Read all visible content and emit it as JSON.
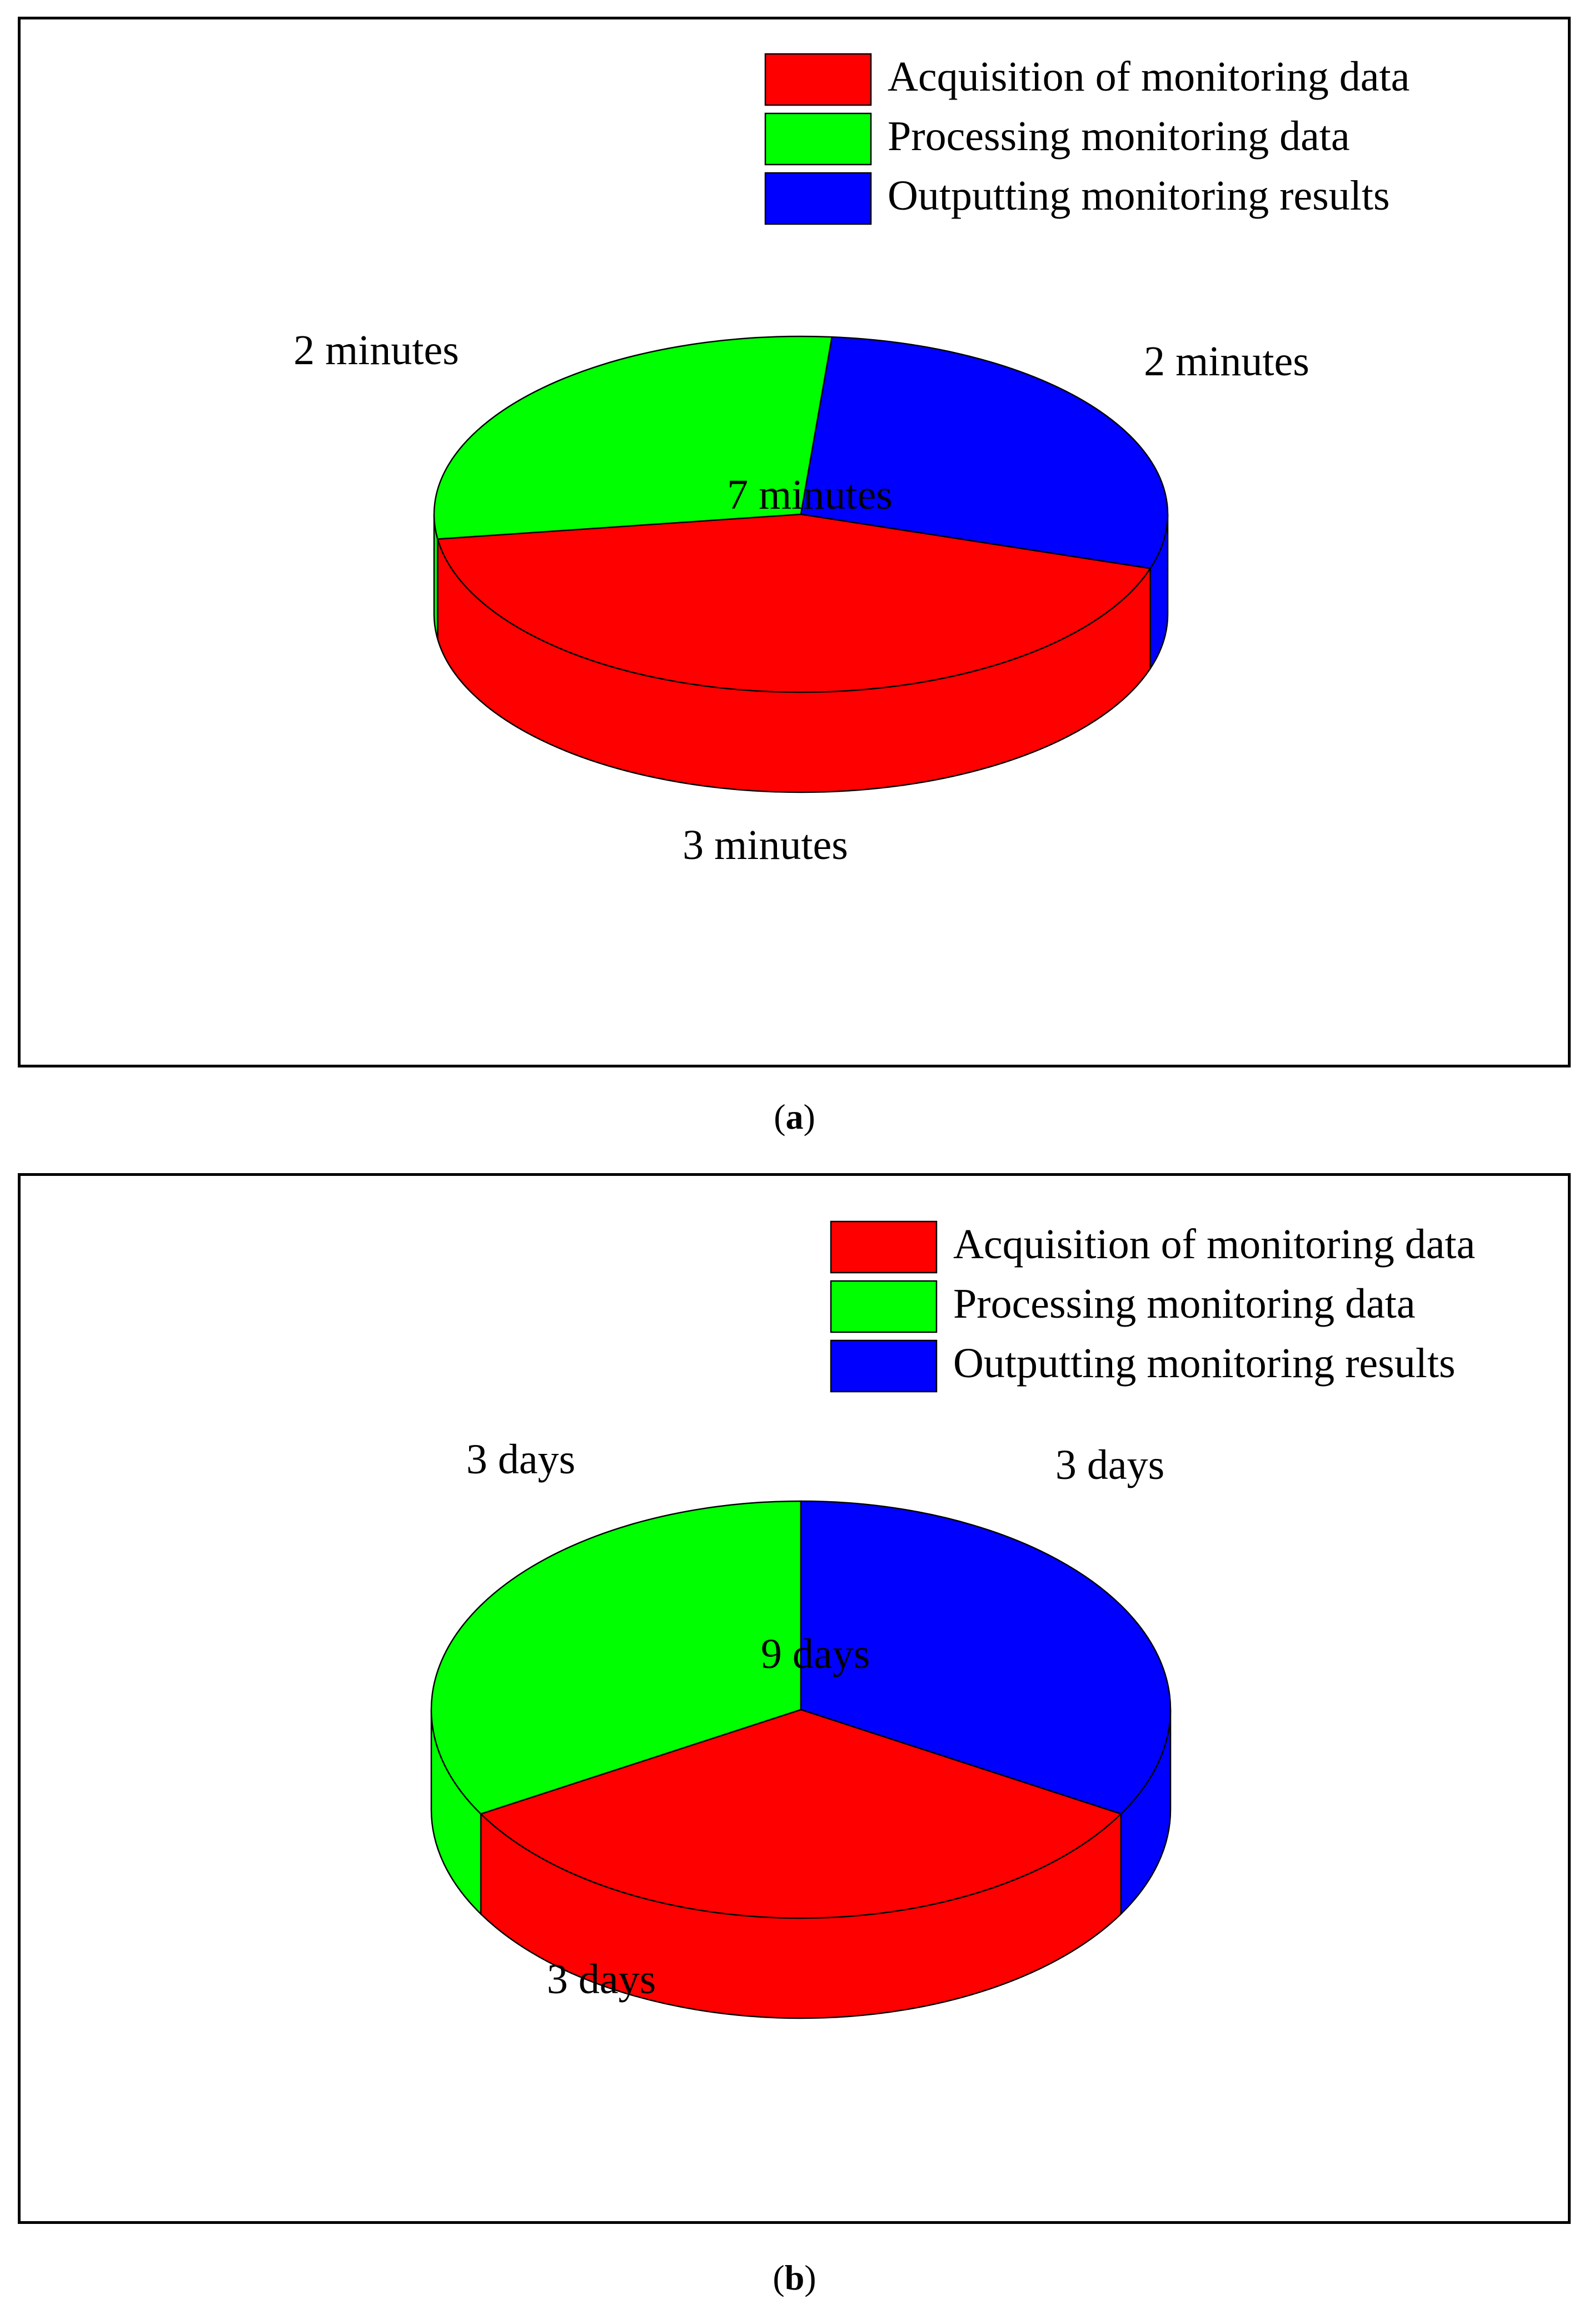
{
  "chart_data": [
    {
      "type": "pie",
      "variant": "3d",
      "panel_label": "a",
      "total_label": "7 minutes",
      "slices": [
        {
          "name": "Acquisition of monitoring data",
          "value": 3,
          "label": "3 minutes",
          "color": "#ff0000"
        },
        {
          "name": "Processing monitoring data",
          "value": 2,
          "label": "2 minutes",
          "color": "#00ff00"
        },
        {
          "name": "Outputting monitoring results",
          "value": 2,
          "label": "2 minutes",
          "color": "#0000ff"
        }
      ],
      "legend_position": "top-right"
    },
    {
      "type": "pie",
      "variant": "3d",
      "panel_label": "b",
      "total_label": "9 days",
      "slices": [
        {
          "name": "Acquisition of monitoring data",
          "value": 3,
          "label": "3 days",
          "color": "#ff0000"
        },
        {
          "name": "Processing monitoring data",
          "value": 3,
          "label": "3 days",
          "color": "#00ff00"
        },
        {
          "name": "Outputting monitoring results",
          "value": 3,
          "label": "3 days",
          "color": "#0000ff"
        }
      ],
      "legend_position": "top-right"
    }
  ]
}
